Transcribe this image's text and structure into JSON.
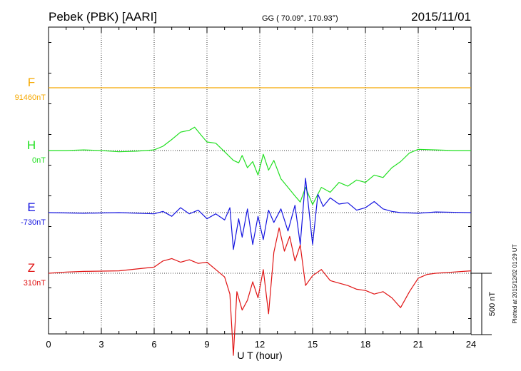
{
  "header": {
    "station": "Pebek (PBK)  [AARI]",
    "coords": "GG ( 70.09°, 170.93°)",
    "date": "2015/11/01"
  },
  "footer": {
    "plotted": "Plotted at 2015/12/02 01:29 UT"
  },
  "chart_data": {
    "type": "line",
    "xlabel": "U T (hour)",
    "xlim": [
      0,
      24
    ],
    "xticks": [
      "0",
      "3",
      "6",
      "9",
      "12",
      "15",
      "18",
      "21",
      "24"
    ],
    "grid": true,
    "scale_bar_label": "500 nT",
    "scale_bar_nT": 500,
    "series": [
      {
        "name": "F",
        "baseline_label": "91460nT",
        "color": "#f5a800",
        "points": [
          [
            0,
            0
          ],
          [
            24,
            0
          ]
        ]
      },
      {
        "name": "H",
        "baseline_label": "0nT",
        "color": "#22e022",
        "points": [
          [
            0,
            0
          ],
          [
            1,
            0
          ],
          [
            2,
            5
          ],
          [
            3,
            0
          ],
          [
            4,
            -10
          ],
          [
            5,
            -5
          ],
          [
            6,
            5
          ],
          [
            6.5,
            35
          ],
          [
            7,
            90
          ],
          [
            7.5,
            150
          ],
          [
            8,
            165
          ],
          [
            8.3,
            190
          ],
          [
            8.7,
            120
          ],
          [
            9,
            70
          ],
          [
            9.5,
            60
          ],
          [
            10,
            -10
          ],
          [
            10.5,
            -80
          ],
          [
            10.8,
            -100
          ],
          [
            11,
            -40
          ],
          [
            11.3,
            -140
          ],
          [
            11.6,
            -90
          ],
          [
            11.9,
            -200
          ],
          [
            12.2,
            -30
          ],
          [
            12.5,
            -160
          ],
          [
            12.8,
            -80
          ],
          [
            13.2,
            -230
          ],
          [
            13.6,
            -300
          ],
          [
            14,
            -370
          ],
          [
            14.3,
            -420
          ],
          [
            14.6,
            -300
          ],
          [
            15,
            -440
          ],
          [
            15.5,
            -300
          ],
          [
            16,
            -340
          ],
          [
            16.5,
            -260
          ],
          [
            17,
            -290
          ],
          [
            17.5,
            -240
          ],
          [
            18,
            -260
          ],
          [
            18.5,
            -200
          ],
          [
            19,
            -220
          ],
          [
            19.5,
            -140
          ],
          [
            20,
            -90
          ],
          [
            20.5,
            -20
          ],
          [
            21,
            10
          ],
          [
            22,
            5
          ],
          [
            23,
            0
          ],
          [
            24,
            0
          ]
        ]
      },
      {
        "name": "E",
        "baseline_label": "-730nT",
        "color": "#1414e0",
        "points": [
          [
            0,
            0
          ],
          [
            2,
            -5
          ],
          [
            4,
            0
          ],
          [
            6,
            -10
          ],
          [
            6.5,
            10
          ],
          [
            7,
            -30
          ],
          [
            7.5,
            40
          ],
          [
            8,
            -10
          ],
          [
            8.5,
            20
          ],
          [
            9,
            -50
          ],
          [
            9.5,
            -10
          ],
          [
            10,
            -60
          ],
          [
            10.3,
            40
          ],
          [
            10.5,
            -300
          ],
          [
            10.8,
            -50
          ],
          [
            11,
            -200
          ],
          [
            11.3,
            30
          ],
          [
            11.6,
            -260
          ],
          [
            11.9,
            -30
          ],
          [
            12.2,
            -220
          ],
          [
            12.5,
            20
          ],
          [
            12.8,
            -80
          ],
          [
            13.2,
            30
          ],
          [
            13.6,
            -150
          ],
          [
            14,
            60
          ],
          [
            14.3,
            -260
          ],
          [
            14.6,
            280
          ],
          [
            15,
            -260
          ],
          [
            15.3,
            150
          ],
          [
            15.6,
            50
          ],
          [
            16,
            120
          ],
          [
            16.5,
            70
          ],
          [
            17,
            80
          ],
          [
            17.5,
            20
          ],
          [
            18,
            40
          ],
          [
            18.5,
            90
          ],
          [
            19,
            30
          ],
          [
            19.5,
            10
          ],
          [
            20,
            0
          ],
          [
            21,
            -5
          ],
          [
            22,
            5
          ],
          [
            24,
            0
          ]
        ]
      },
      {
        "name": "Z",
        "baseline_label": "310nT",
        "color": "#e01414",
        "points": [
          [
            0,
            0
          ],
          [
            1,
            10
          ],
          [
            2,
            15
          ],
          [
            4,
            20
          ],
          [
            6,
            50
          ],
          [
            6.5,
            100
          ],
          [
            7,
            120
          ],
          [
            7.5,
            90
          ],
          [
            8,
            110
          ],
          [
            8.5,
            80
          ],
          [
            9,
            90
          ],
          [
            9.5,
            30
          ],
          [
            10,
            -30
          ],
          [
            10.3,
            -170
          ],
          [
            10.5,
            -670
          ],
          [
            10.7,
            -150
          ],
          [
            11,
            -300
          ],
          [
            11.3,
            -220
          ],
          [
            11.6,
            -70
          ],
          [
            11.9,
            -200
          ],
          [
            12.2,
            30
          ],
          [
            12.5,
            -330
          ],
          [
            12.8,
            170
          ],
          [
            13.1,
            370
          ],
          [
            13.4,
            180
          ],
          [
            13.7,
            300
          ],
          [
            14,
            100
          ],
          [
            14.3,
            230
          ],
          [
            14.6,
            -100
          ],
          [
            15,
            -20
          ],
          [
            15.5,
            30
          ],
          [
            16,
            -60
          ],
          [
            16.5,
            -80
          ],
          [
            17,
            -100
          ],
          [
            17.5,
            -130
          ],
          [
            18,
            -140
          ],
          [
            18.5,
            -170
          ],
          [
            19,
            -150
          ],
          [
            19.5,
            -200
          ],
          [
            20,
            -280
          ],
          [
            20.5,
            -150
          ],
          [
            21,
            -40
          ],
          [
            21.5,
            -10
          ],
          [
            22,
            0
          ],
          [
            23,
            10
          ],
          [
            24,
            20
          ]
        ]
      }
    ]
  }
}
